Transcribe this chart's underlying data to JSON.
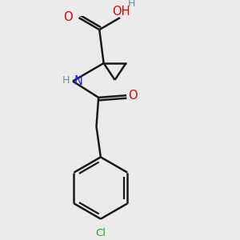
{
  "background_color": "#ebebeb",
  "bond_color": "#1a1a1a",
  "bond_width": 1.8,
  "atom_colors": {
    "C": "#1a1a1a",
    "H": "#6e8c8c",
    "N": "#2020ff",
    "O": "#dd0000",
    "Cl": "#1aaa1a"
  },
  "figsize": [
    3.0,
    3.0
  ],
  "dpi": 100
}
